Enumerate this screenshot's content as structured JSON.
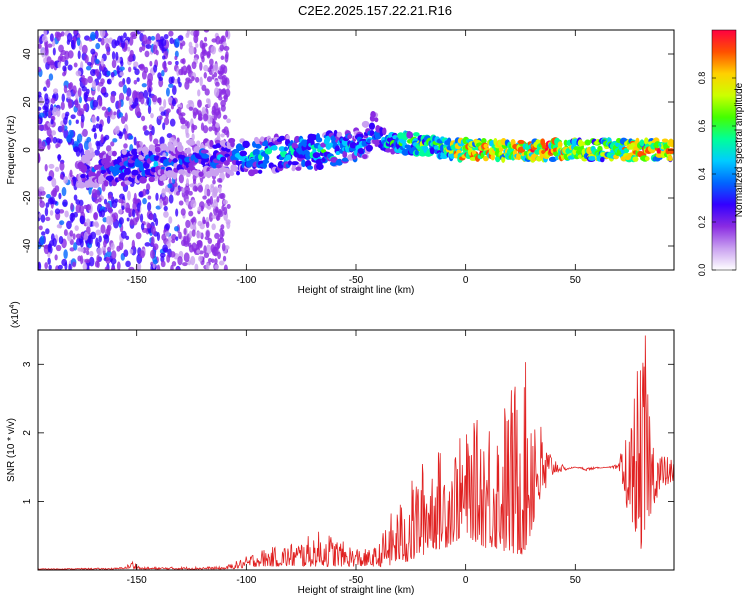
{
  "title": "C2E2.2025.157.22.21.R16",
  "chart_data": [
    {
      "type": "heatmap",
      "title": "C2E2.2025.157.22.21.R16",
      "xlabel": "Height of straight line (km)",
      "ylabel": "Frequency (Hz)",
      "xlim": [
        -195,
        95
      ],
      "ylim": [
        -50,
        50
      ],
      "x_ticks": [
        "-150",
        "-100",
        "-50",
        "0",
        "50"
      ],
      "y_ticks": [
        "40",
        "20",
        "0",
        "-20",
        "-40"
      ],
      "colorbar": {
        "label": "Normalized spectral amplitude",
        "range": [
          0,
          1
        ],
        "ticks": [
          "0.0",
          "0.2",
          "0.4",
          "0.6",
          "0.8"
        ],
        "colors": [
          "#ffffff",
          "#c9a0f0",
          "#8a2be2",
          "#3300ff",
          "#0066ff",
          "#00ccff",
          "#00ff99",
          "#44ff00",
          "#ccff00",
          "#ffd000",
          "#ff5000",
          "#ff0040"
        ]
      },
      "ridge": {
        "description_x": [
          -170,
          -150,
          -130,
          -110,
          -100,
          -80,
          -60,
          -48,
          -42,
          -35,
          -25,
          -10,
          0,
          10,
          20,
          30,
          40,
          50,
          60,
          70,
          80,
          95
        ],
        "center_hz": [
          -8,
          -7,
          -4,
          -3,
          -3,
          -1,
          0,
          2,
          8,
          3,
          3,
          1,
          0,
          0,
          0,
          0,
          0,
          0,
          0,
          0,
          0,
          0
        ],
        "peak_amplitude": [
          0.35,
          0.5,
          0.35,
          0.45,
          0.55,
          0.55,
          0.6,
          0.5,
          0.45,
          0.55,
          0.65,
          0.7,
          1.0,
          0.95,
          0.9,
          0.95,
          1.0,
          0.8,
          0.8,
          0.85,
          0.95,
          0.9
        ]
      },
      "noise_region_x": [
        -195,
        -108
      ]
    },
    {
      "type": "line",
      "xlabel": "Height of straight line (km)",
      "ylabel": "SNR (10 * v/v)",
      "exponent_label": "(x10",
      "exponent_sup": "4",
      "xlim": [
        -195,
        95
      ],
      "ylim": [
        0,
        3.5
      ],
      "x_ticks": [
        "-150",
        "-100",
        "-50",
        "0",
        "50"
      ],
      "y_ticks": [
        "1",
        "2",
        "3"
      ],
      "series": [
        {
          "color": "#e02020",
          "x": [
            -195,
            -160,
            -155,
            -152,
            -148,
            -110,
            -100,
            -95,
            -85,
            -75,
            -65,
            -55,
            -45,
            -40,
            -35,
            -30,
            -25,
            -20,
            -15,
            -10,
            -5,
            0,
            5,
            10,
            15,
            20,
            25,
            28,
            30,
            32,
            35,
            40,
            45,
            50,
            55,
            60,
            65,
            70,
            72,
            75,
            78,
            80,
            82,
            85,
            88,
            90,
            95
          ],
          "envelope_max": [
            0.02,
            0.03,
            0.05,
            0.15,
            0.04,
            0.05,
            0.2,
            0.3,
            0.35,
            0.45,
            0.6,
            0.4,
            0.3,
            0.35,
            0.8,
            1.0,
            1.3,
            1.6,
            1.8,
            1.75,
            1.9,
            2.0,
            2.2,
            2.4,
            2.3,
            2.7,
            3.0,
            3.05,
            3.15,
            2.8,
            2.0,
            1.7,
            1.5,
            1.5,
            1.5,
            1.5,
            1.5,
            1.55,
            2.0,
            2.1,
            3.0,
            2.9,
            3.5,
            2.1,
            1.9,
            1.7,
            1.6
          ],
          "envelope_min": [
            0.01,
            0.01,
            0.02,
            0.02,
            0.01,
            0.01,
            0.03,
            0.05,
            0.05,
            0.05,
            0.05,
            0.05,
            0.05,
            0.05,
            0.05,
            0.1,
            0.1,
            0.2,
            0.3,
            0.3,
            0.4,
            0.5,
            0.4,
            0.3,
            0.3,
            0.2,
            0.2,
            0.3,
            0.5,
            0.8,
            1.0,
            1.4,
            1.45,
            1.5,
            1.45,
            1.48,
            1.5,
            1.45,
            1.0,
            0.8,
            0.5,
            0.3,
            0.4,
            0.9,
            1.1,
            1.2,
            1.3
          ]
        }
      ]
    }
  ]
}
